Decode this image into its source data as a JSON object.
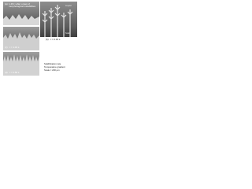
{
  "panels": [
    {
      "label": "(a)",
      "caption": "1.4% t after onset of morphological instabilities"
    },
    {
      "label": "(b)",
      "caption": "t = 0.34 s"
    },
    {
      "label": "(c)",
      "caption": "t = 1.04 s"
    },
    {
      "label": "(d)",
      "caption": "t = 0.58 s"
    }
  ],
  "notes": [
    "Solid",
    "Liquid"
  ],
  "legend": [
    "Solidification rate",
    "Temperature gradient",
    "Scale = 200 μm"
  ]
}
